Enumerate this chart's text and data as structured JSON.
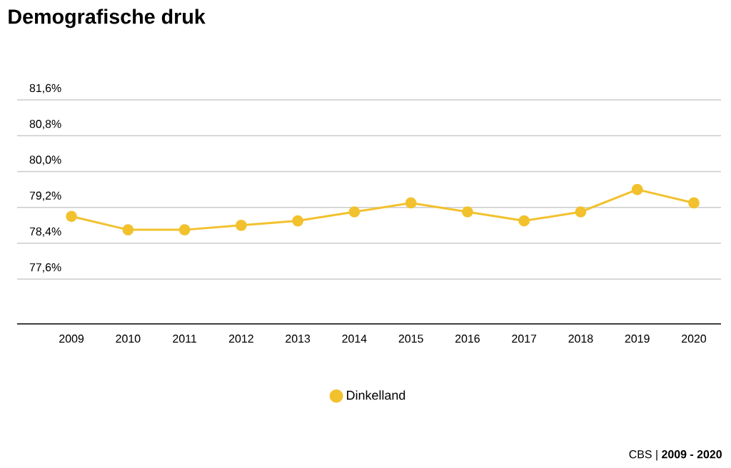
{
  "chart_data": {
    "type": "line",
    "title": "Demografische druk",
    "categories": [
      "2009",
      "2010",
      "2011",
      "2012",
      "2013",
      "2014",
      "2015",
      "2016",
      "2017",
      "2018",
      "2019",
      "2020"
    ],
    "series": [
      {
        "name": "Dinkelland",
        "color": "#f2c12e",
        "values": [
          79.0,
          78.7,
          78.7,
          78.8,
          78.9,
          79.1,
          79.3,
          79.1,
          78.9,
          79.1,
          79.6,
          79.3
        ]
      }
    ],
    "ylim": [
      76.6,
      81.6
    ],
    "yticks": [
      {
        "value": 77.6,
        "label": "77,6%"
      },
      {
        "value": 78.4,
        "label": "78,4%"
      },
      {
        "value": 79.2,
        "label": "79,2%"
      },
      {
        "value": 80.0,
        "label": "80,0%"
      },
      {
        "value": 80.8,
        "label": "80,8%"
      },
      {
        "value": 81.6,
        "label": "81,6%"
      }
    ],
    "grid": "y",
    "legend": "bottom",
    "marker": "circle",
    "line_style": "solid",
    "annotations": [
      "CBS | **2009 - 2020**"
    ]
  }
}
